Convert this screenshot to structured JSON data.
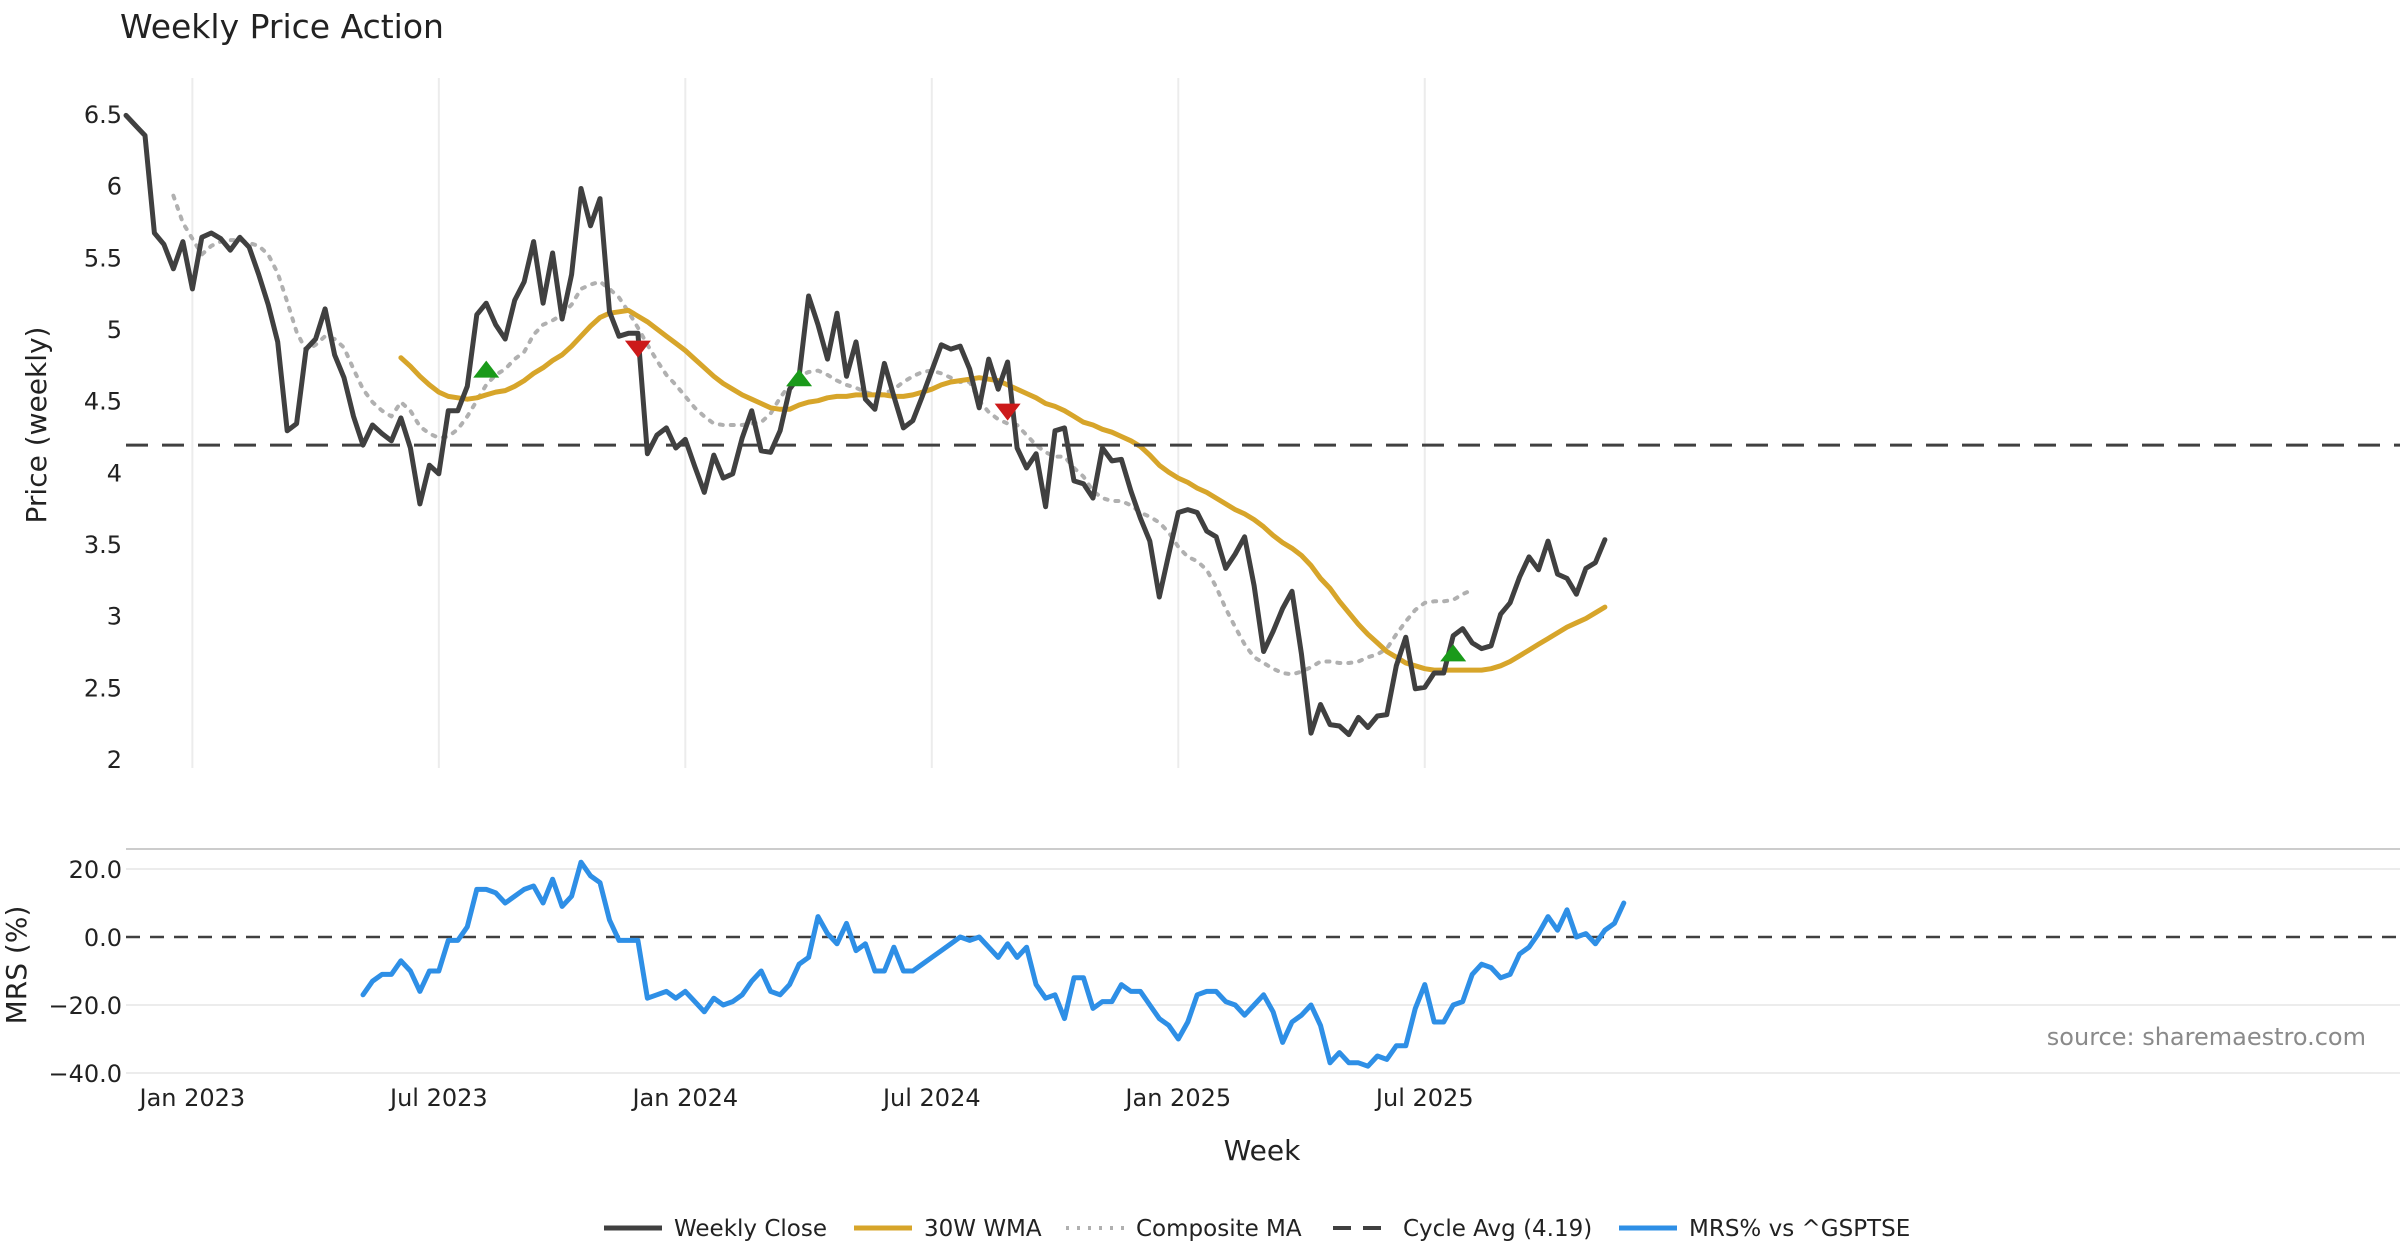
{
  "chart_data": [
    {
      "type": "line",
      "title": "Weekly Price Action",
      "xlabel": "Week",
      "ylabel": "Price (weekly)",
      "ylim": [
        2,
        6.5
      ],
      "x_range": [
        0,
        161
      ],
      "x_ticks": [
        {
          "week": 7,
          "label": "Jan 2023"
        },
        {
          "week": 33,
          "label": "Jul 2023"
        },
        {
          "week": 59,
          "label": "Jan 2024"
        },
        {
          "week": 85,
          "label": "Jul 2024"
        },
        {
          "week": 111,
          "label": "Jan 2025"
        },
        {
          "week": 137,
          "label": "Jul 2025"
        }
      ],
      "y_ticks": [
        {
          "value": 2,
          "label": "2"
        },
        {
          "value": 2.5,
          "label": "2.5"
        },
        {
          "value": 3,
          "label": "3"
        },
        {
          "value": 3.5,
          "label": "3.5"
        },
        {
          "value": 4,
          "label": "4"
        },
        {
          "value": 4.5,
          "label": "4.5"
        },
        {
          "value": 5,
          "label": "5"
        },
        {
          "value": 5.5,
          "label": "5.5"
        },
        {
          "value": 6,
          "label": "6"
        },
        {
          "value": 6.5,
          "label": "6.5"
        }
      ],
      "grid": "vertical",
      "series": [
        {
          "name": "Weekly Close",
          "color": "#404040",
          "style": "solid",
          "start_week": 0,
          "values": [
            6.49,
            6.42,
            6.35,
            5.67,
            5.59,
            5.42,
            5.61,
            5.28,
            5.64,
            5.67,
            5.63,
            5.55,
            5.64,
            5.57,
            5.38,
            5.17,
            4.91,
            4.29,
            4.34,
            4.86,
            4.93,
            5.14,
            4.82,
            4.66,
            4.39,
            4.19,
            4.33,
            4.27,
            4.22,
            4.38,
            4.17,
            3.78,
            4.05,
            3.99,
            4.43,
            4.43,
            4.6,
            5.1,
            5.18,
            5.03,
            4.93,
            5.2,
            5.33,
            5.61,
            5.18,
            5.53,
            5.07,
            5.38,
            5.98,
            5.72,
            5.91,
            5.12,
            4.95,
            4.97,
            4.97,
            4.13,
            4.26,
            4.31,
            4.17,
            4.23,
            4.04,
            3.86,
            4.12,
            3.96,
            3.99,
            4.24,
            4.43,
            4.15,
            4.14,
            4.29,
            4.58,
            4.67,
            5.23,
            5.03,
            4.79,
            5.11,
            4.67,
            4.91,
            4.51,
            4.44,
            4.76,
            4.53,
            4.31,
            4.36,
            4.53,
            4.71,
            4.89,
            4.86,
            4.88,
            4.72,
            4.45,
            4.79,
            4.58,
            4.77,
            4.17,
            4.03,
            4.13,
            3.76,
            4.29,
            4.31,
            3.94,
            3.92,
            3.82,
            4.17,
            4.08,
            4.09,
            3.87,
            3.68,
            3.52,
            3.13,
            3.43,
            3.72,
            3.74,
            3.72,
            3.59,
            3.55,
            3.33,
            3.43,
            3.55,
            3.21,
            2.75,
            2.89,
            3.05,
            3.17,
            2.73,
            2.18,
            2.38,
            2.24,
            2.23,
            2.17,
            2.29,
            2.22,
            2.3,
            2.31,
            2.65,
            2.85,
            2.49,
            2.5,
            2.6,
            2.6,
            2.86,
            2.91,
            2.81,
            2.77,
            2.79,
            3.01,
            3.09,
            3.27,
            3.41,
            3.32,
            3.52,
            3.29,
            3.26,
            3.15,
            3.33,
            3.37,
            3.53
          ]
        },
        {
          "name": "30W WMA",
          "color": "#d7a52a",
          "style": "solid",
          "start_week": 29,
          "values": [
            4.8,
            4.74,
            4.67,
            4.61,
            4.56,
            4.53,
            4.52,
            4.51,
            4.52,
            4.54,
            4.56,
            4.57,
            4.6,
            4.64,
            4.69,
            4.73,
            4.78,
            4.82,
            4.88,
            4.95,
            5.02,
            5.08,
            5.11,
            5.12,
            5.13,
            5.09,
            5.05,
            5.0,
            4.95,
            4.9,
            4.85,
            4.79,
            4.73,
            4.67,
            4.62,
            4.58,
            4.54,
            4.51,
            4.48,
            4.45,
            4.44,
            4.44,
            4.47,
            4.49,
            4.5,
            4.52,
            4.53,
            4.53,
            4.54,
            4.54,
            4.54,
            4.54,
            4.53,
            4.53,
            4.54,
            4.56,
            4.58,
            4.61,
            4.63,
            4.64,
            4.65,
            4.66,
            4.65,
            4.64,
            4.61,
            4.58,
            4.55,
            4.52,
            4.48,
            4.46,
            4.43,
            4.39,
            4.35,
            4.33,
            4.3,
            4.28,
            4.25,
            4.22,
            4.18,
            4.12,
            4.05,
            4.0,
            3.96,
            3.93,
            3.89,
            3.86,
            3.82,
            3.78,
            3.74,
            3.71,
            3.67,
            3.62,
            3.56,
            3.51,
            3.47,
            3.42,
            3.35,
            3.26,
            3.19,
            3.1,
            3.02,
            2.94,
            2.87,
            2.81,
            2.75,
            2.71,
            2.67,
            2.65,
            2.63,
            2.62,
            2.62,
            2.62,
            2.62,
            2.62,
            2.62,
            2.63,
            2.65,
            2.68,
            2.72,
            2.76,
            2.8,
            2.84,
            2.88,
            2.92,
            2.95,
            2.98,
            3.02,
            3.06
          ]
        },
        {
          "name": "Composite MA",
          "color": "#b0b0b0",
          "style": "dotted",
          "start_week": 5,
          "values": [
            5.93,
            5.74,
            5.63,
            5.52,
            5.58,
            5.61,
            5.62,
            5.62,
            5.6,
            5.58,
            5.52,
            5.39,
            5.19,
            4.98,
            4.85,
            4.89,
            4.95,
            4.93,
            4.87,
            4.72,
            4.58,
            4.49,
            4.43,
            4.39,
            4.49,
            4.43,
            4.32,
            4.27,
            4.24,
            4.25,
            4.3,
            4.39,
            4.5,
            4.61,
            4.68,
            4.72,
            4.79,
            4.84,
            4.96,
            5.03,
            5.06,
            5.1,
            5.17,
            5.28,
            5.31,
            5.33,
            5.28,
            5.22,
            5.12,
            5.01,
            4.89,
            4.78,
            4.68,
            4.61,
            4.53,
            4.45,
            4.39,
            4.34,
            4.33,
            4.33,
            4.33,
            4.34,
            4.35,
            4.41,
            4.52,
            4.61,
            4.67,
            4.7,
            4.71,
            4.68,
            4.64,
            4.61,
            4.59,
            4.56,
            4.54,
            4.55,
            4.58,
            4.63,
            4.67,
            4.7,
            4.71,
            4.69,
            4.66,
            4.63,
            4.63,
            4.5,
            4.42,
            4.37,
            4.34,
            4.33,
            4.26,
            4.19,
            4.14,
            4.11,
            4.11,
            4.03,
            3.97,
            3.87,
            3.82,
            3.8,
            3.8,
            3.77,
            3.72,
            3.69,
            3.65,
            3.58,
            3.48,
            3.41,
            3.38,
            3.32,
            3.2,
            3.05,
            2.92,
            2.8,
            2.71,
            2.67,
            2.63,
            2.6,
            2.59,
            2.61,
            2.64,
            2.68,
            2.68,
            2.67,
            2.67,
            2.68,
            2.71,
            2.73,
            2.77,
            2.87,
            2.96,
            3.04,
            3.09,
            3.1,
            3.1,
            3.11,
            3.15,
            3.18
          ]
        },
        {
          "name": "Cycle Avg (4.19)",
          "color": "#404040",
          "style": "dashed",
          "value": 4.19
        }
      ],
      "signals": [
        {
          "type": "buy",
          "week": 38,
          "value": 4.72,
          "color": "#1a9a1a"
        },
        {
          "type": "sell",
          "week": 54,
          "value": 4.86,
          "color": "#cc1a1a"
        },
        {
          "type": "buy",
          "week": 71,
          "value": 4.66,
          "color": "#1a9a1a"
        },
        {
          "type": "sell",
          "week": 93,
          "value": 4.42,
          "color": "#cc1a1a"
        },
        {
          "type": "buy",
          "week": 140,
          "value": 2.74,
          "color": "#1a9a1a"
        }
      ]
    },
    {
      "type": "line",
      "ylabel": "MRS (%)",
      "ylim": [
        -40,
        25
      ],
      "y_ticks": [
        {
          "value": 20,
          "label": "20.0"
        },
        {
          "value": 0,
          "label": "0.0"
        },
        {
          "value": -20,
          "label": "−20.0"
        },
        {
          "value": -40,
          "label": "−40.0"
        }
      ],
      "zero_line": 0,
      "series": [
        {
          "name": "MRS% vs ^GSPTSE",
          "color": "#2e8fe6",
          "style": "solid",
          "start_week": 25,
          "values": [
            -17,
            -13,
            -11,
            -11,
            -7,
            -10,
            -16,
            -10,
            -10,
            -1,
            -1,
            3,
            14,
            14,
            13,
            10,
            12,
            14,
            15,
            10,
            17,
            9,
            12,
            22,
            18,
            16,
            5,
            -1,
            -1,
            -1,
            -18,
            -17,
            -16,
            -18,
            -16,
            -19,
            -22,
            -18,
            -20,
            -19,
            -17,
            -13,
            -10,
            -16,
            -17,
            -14,
            -8,
            -6,
            6,
            1,
            -2,
            4,
            -4,
            -2,
            -10,
            -10,
            -3,
            -10,
            -10,
            -8,
            -6,
            -4,
            -2,
            0,
            -1,
            0,
            -3,
            -6,
            -2,
            -6,
            -3,
            -14,
            -18,
            -17,
            -24,
            -12,
            -12,
            -21,
            -19,
            -19,
            -14,
            -16,
            -16,
            -20,
            -24,
            -26,
            -30,
            -25,
            -17,
            -16,
            -16,
            -19,
            -20,
            -23,
            -20,
            -17,
            -22,
            -31,
            -25,
            -23,
            -20,
            -26,
            -37,
            -34,
            -37,
            -37,
            -38,
            -35,
            -36,
            -32,
            -32,
            -21,
            -14,
            -25,
            -25,
            -20,
            -19,
            -11,
            -8,
            -9,
            -12,
            -11,
            -5,
            -3,
            1,
            6,
            2,
            8,
            0,
            1,
            -2,
            2,
            4,
            10
          ]
        }
      ]
    }
  ],
  "legend": [
    {
      "label": "Weekly Close",
      "color": "#404040",
      "style": "solid"
    },
    {
      "label": "30W WMA",
      "color": "#d7a52a",
      "style": "solid"
    },
    {
      "label": "Composite MA",
      "color": "#b0b0b0",
      "style": "dotted"
    },
    {
      "label": "Cycle Avg (4.19)",
      "color": "#404040",
      "style": "dashed"
    },
    {
      "label": "MRS% vs ^GSPTSE",
      "color": "#2e8fe6",
      "style": "solid"
    }
  ],
  "source_text": "source: sharemaestro.com"
}
